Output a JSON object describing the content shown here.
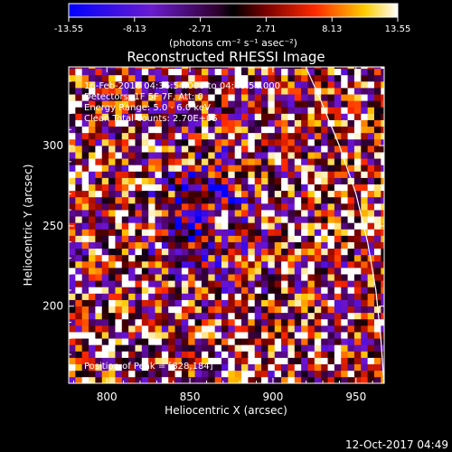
{
  "chart_data": {
    "type": "heatmap",
    "title": "Reconstructed RHESSI Image",
    "xlabel": "Heliocentric X (arcsec)",
    "ylabel": "Heliocentric Y (arcsec)",
    "xlim": [
      777,
      967
    ],
    "ylim": [
      152,
      349
    ],
    "x_ticks": [
      800,
      850,
      900,
      950
    ],
    "y_ticks": [
      200,
      250,
      300
    ],
    "colorbar": {
      "min": -13.55,
      "max": 13.55,
      "ticks": [
        "-13.55",
        "-8.13",
        "-2.71",
        "2.71",
        "8.13",
        "13.55"
      ],
      "unit_label": "(photons cm⁻² s⁻¹ asec⁻²)"
    },
    "annotations": [
      "16-Feb-2016 04:36:54.000 to 04:46:54.000",
      "Detectors: 1F 5F 7F, Att: 0",
      "Energy Range: 5.0 - 6.0 keV",
      "Clean    Total counts: 2.70E+05"
    ],
    "peak_label": "Position of Peak = [828,184]",
    "peak_position": [
      828,
      184
    ],
    "features": {
      "central_source": {
        "x": 867,
        "y": 253,
        "sign": "positive"
      },
      "negative_ring": {
        "x": 858,
        "y": 257,
        "sign": "negative"
      }
    }
  },
  "footer": {
    "timestamp": "12-Oct-2017 04:49"
  }
}
